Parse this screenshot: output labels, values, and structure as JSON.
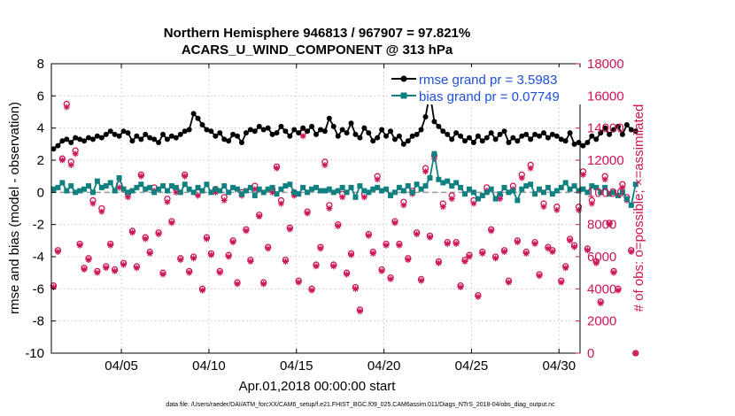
{
  "chart_data": {
    "type": "line",
    "title": "Northern Hemisphere 946813 / 967907 = 97.821%",
    "subtitle": "ACARS_U_WIND_COMPONENT @ 313 hPa",
    "xlabel": "Apr.01,2018 00:00:00 start",
    "ylabel": "rmse and bias (model - observation)",
    "ylabel_right": "# of obs: o=possible; ×=assimilated",
    "footer": "data file: /Users/raeder/DAI/ATM_forcXX/CAM6_setup/f.e21.FHIST_BGC.f09_025.CAM6assim.011/Diags_NTrS_2018-04/obs_diag_output.nc",
    "xlim": [
      1,
      31.2
    ],
    "ylim": [
      -10,
      8
    ],
    "ylim_right": [
      0,
      18000
    ],
    "x_ticks": [
      {
        "x": 5,
        "label": "04/05"
      },
      {
        "x": 10,
        "label": "04/10"
      },
      {
        "x": 15,
        "label": "04/15"
      },
      {
        "x": 20,
        "label": "04/20"
      },
      {
        "x": 25,
        "label": "04/25"
      },
      {
        "x": 30,
        "label": "04/30"
      }
    ],
    "y_ticks": [
      -10,
      -8,
      -6,
      -4,
      -2,
      0,
      2,
      4,
      6,
      8
    ],
    "y_ticks_right": [
      0,
      2000,
      4000,
      6000,
      8000,
      10000,
      12000,
      14000,
      16000,
      18000
    ],
    "legend": [
      {
        "label": "rmse grand pr = 3.5983",
        "color": "#000000"
      },
      {
        "label": "bias grand pr = 0.07749",
        "color": "#118080"
      }
    ],
    "colors": {
      "rmse": "#000000",
      "bias": "#118080",
      "obs": "#cc1456",
      "zero_line": "#999999",
      "grid": "#bbbbbb"
    },
    "step_days": 0.25,
    "rmse": [
      2.7,
      2.9,
      3.2,
      3.3,
      3.1,
      3.4,
      3.3,
      3.2,
      3.4,
      3.3,
      3.5,
      3.4,
      3.6,
      3.8,
      3.6,
      3.5,
      3.8,
      3.7,
      3.2,
      3.5,
      3.3,
      3.6,
      3.4,
      3.3,
      3.1,
      3.6,
      3.3,
      3.5,
      3.4,
      3.6,
      3.8,
      3.9,
      4.9,
      4.6,
      4.2,
      3.9,
      3.8,
      3.5,
      3.7,
      3.3,
      3.2,
      3.6,
      3.5,
      3.1,
      3.7,
      3.9,
      3.8,
      4.1,
      3.9,
      4.0,
      3.6,
      3.7,
      4.1,
      3.8,
      3.5,
      3.9,
      3.7,
      4.0,
      3.8,
      4.1,
      3.6,
      3.9,
      3.8,
      4.6,
      4.1,
      3.5,
      3.9,
      3.7,
      4.3,
      3.6,
      3.4,
      4.0,
      3.7,
      3.2,
      3.4,
      3.9,
      3.5,
      3.8,
      3.3,
      3.5,
      3.0,
      3.2,
      3.5,
      3.6,
      3.9,
      4.7,
      6.2,
      4.4,
      4.1,
      3.8,
      3.6,
      3.3,
      3.7,
      3.5,
      3.2,
      3.4,
      3.1,
      3.5,
      3.2,
      3.4,
      3.7,
      3.3,
      3.6,
      3.8,
      3.1,
      3.4,
      3.2,
      3.5,
      3.6,
      3.3,
      3.6,
      3.5,
      3.7,
      3.4,
      3.6,
      3.5,
      3.3,
      3.2,
      3.7,
      3.0,
      3.1,
      2.9,
      3.1,
      3.5,
      3.3,
      3.7,
      4.0,
      3.6,
      3.9,
      4.1,
      3.6,
      4.2,
      3.9,
      3.8
    ],
    "bias": [
      0.2,
      0.3,
      0.6,
      0.1,
      0.4,
      0.0,
      0.1,
      0.2,
      0.4,
      0.0,
      0.7,
      0.3,
      0.4,
      0.6,
      0.1,
      0.9,
      0.2,
      0.0,
      0.1,
      0.3,
      0.5,
      0.2,
      0.3,
      0.0,
      0.2,
      0.4,
      0.1,
      0.4,
      0.3,
      0.0,
      0.5,
      0.2,
      0.0,
      0.3,
      0.1,
      0.5,
      0.0,
      0.2,
      0.1,
      0.4,
      0.0,
      0.3,
      0.2,
      -0.1,
      0.1,
      0.3,
      -0.2,
      0.2,
      0.0,
      0.2,
      0.3,
      -0.1,
      0.2,
      0.4,
      0.5,
      0.0,
      -0.1,
      0.3,
      0.0,
      0.2,
      0.3,
      0.1,
      0.1,
      0.2,
      0.0,
      0.1,
      0.3,
      0.0,
      0.3,
      -0.3,
      0.4,
      0.1,
      0.0,
      0.2,
      0.3,
      0.1,
      0.2,
      -0.2,
      0.0,
      0.3,
      0.1,
      0.4,
      0.0,
      0.5,
      0.2,
      0.4,
      0.9,
      2.4,
      0.8,
      0.6,
      0.7,
      0.4,
      0.6,
      0.3,
      -0.1,
      0.2,
      0.0,
      -0.4,
      -0.2,
      0.0,
      0.2,
      -0.4,
      -0.1,
      0.3,
      0.0,
      0.1,
      -0.5,
      0.2,
      0.4,
      0.5,
      -0.1,
      0.2,
      0.0,
      0.3,
      -0.1,
      0.1,
      0.3,
      0.6,
      0.2,
      0.4,
      0.1,
      0.2,
      0.0,
      0.4,
      0.3,
      0.0,
      0.3,
      -0.1,
      0.0,
      -0.2,
      0.0,
      -0.4,
      -0.8,
      0.5
    ],
    "obs_possible": [
      4200,
      6400,
      12100,
      15500,
      11900,
      12600,
      6800,
      5300,
      5900,
      9500,
      5100,
      9000,
      5400,
      6800,
      5200,
      10500,
      5600,
      9900,
      7600,
      5400,
      11100,
      7200,
      6300,
      10300,
      7500,
      5000,
      9600,
      8200,
      10200,
      5900,
      11100,
      5100,
      6000,
      10000,
      4000,
      7200,
      6200,
      10200,
      5100,
      9700,
      6100,
      7000,
      4400,
      10000,
      7700,
      5800,
      10400,
      8600,
      4400,
      6600,
      10200,
      11600,
      9500,
      5800,
      7800,
      10000,
      4500,
      13700,
      8800,
      4000,
      5500,
      6600,
      11900,
      9200,
      5500,
      8000,
      9900,
      5000,
      6200,
      4100,
      2700,
      9900,
      7400,
      6300,
      11000,
      5200,
      6800,
      4700,
      8200,
      6800,
      9400,
      5900,
      10100,
      7500,
      4600,
      11500,
      7300,
      12300,
      5700,
      9300,
      6900,
      9800,
      6900,
      4200,
      5800,
      6100,
      9500,
      3600,
      6300,
      10300,
      7700,
      6000,
      9800,
      6400,
      4500,
      10400,
      7000,
      11100,
      6300,
      11700,
      6900,
      4900,
      9300,
      6600,
      6400,
      9100,
      4500,
      5400,
      7100,
      6700,
      9100,
      11300,
      6500,
      9500,
      5700,
      3200,
      11000,
      8100,
      5100,
      4000,
      10500,
      9700,
      6400,
      0
    ],
    "obs_assim": [
      4100,
      6300,
      12000,
      15300,
      11700,
      12400,
      6700,
      5200,
      5800,
      9300,
      5000,
      8800,
      5300,
      6700,
      5100,
      10300,
      5500,
      9700,
      7500,
      5300,
      11000,
      7100,
      6200,
      10100,
      7400,
      4900,
      9400,
      8100,
      10000,
      5800,
      11000,
      5000,
      5900,
      9800,
      3900,
      7100,
      6100,
      10000,
      5000,
      9500,
      6000,
      6900,
      4300,
      9800,
      7600,
      5700,
      10200,
      8500,
      4300,
      6500,
      10000,
      11500,
      9300,
      5700,
      7700,
      9800,
      4400,
      13500,
      8700,
      3900,
      5400,
      6500,
      11700,
      9000,
      5400,
      7900,
      9700,
      4900,
      6100,
      4000,
      2600,
      9700,
      7300,
      6200,
      10800,
      5100,
      6700,
      4600,
      8100,
      6700,
      9200,
      5800,
      9900,
      7400,
      4500,
      11300,
      7200,
      12100,
      5600,
      9100,
      6800,
      9600,
      6800,
      4100,
      5700,
      6000,
      9300,
      3500,
      6200,
      10100,
      7600,
      5900,
      9600,
      6300,
      4400,
      10200,
      6900,
      10900,
      6200,
      11500,
      6800,
      4800,
      9100,
      6500,
      6300,
      8900,
      4400,
      5300,
      7000,
      6600,
      8900,
      11100,
      6400,
      9300,
      5600,
      3100,
      10800,
      8000,
      5000,
      3900,
      10300,
      9500,
      6300,
      0
    ]
  }
}
